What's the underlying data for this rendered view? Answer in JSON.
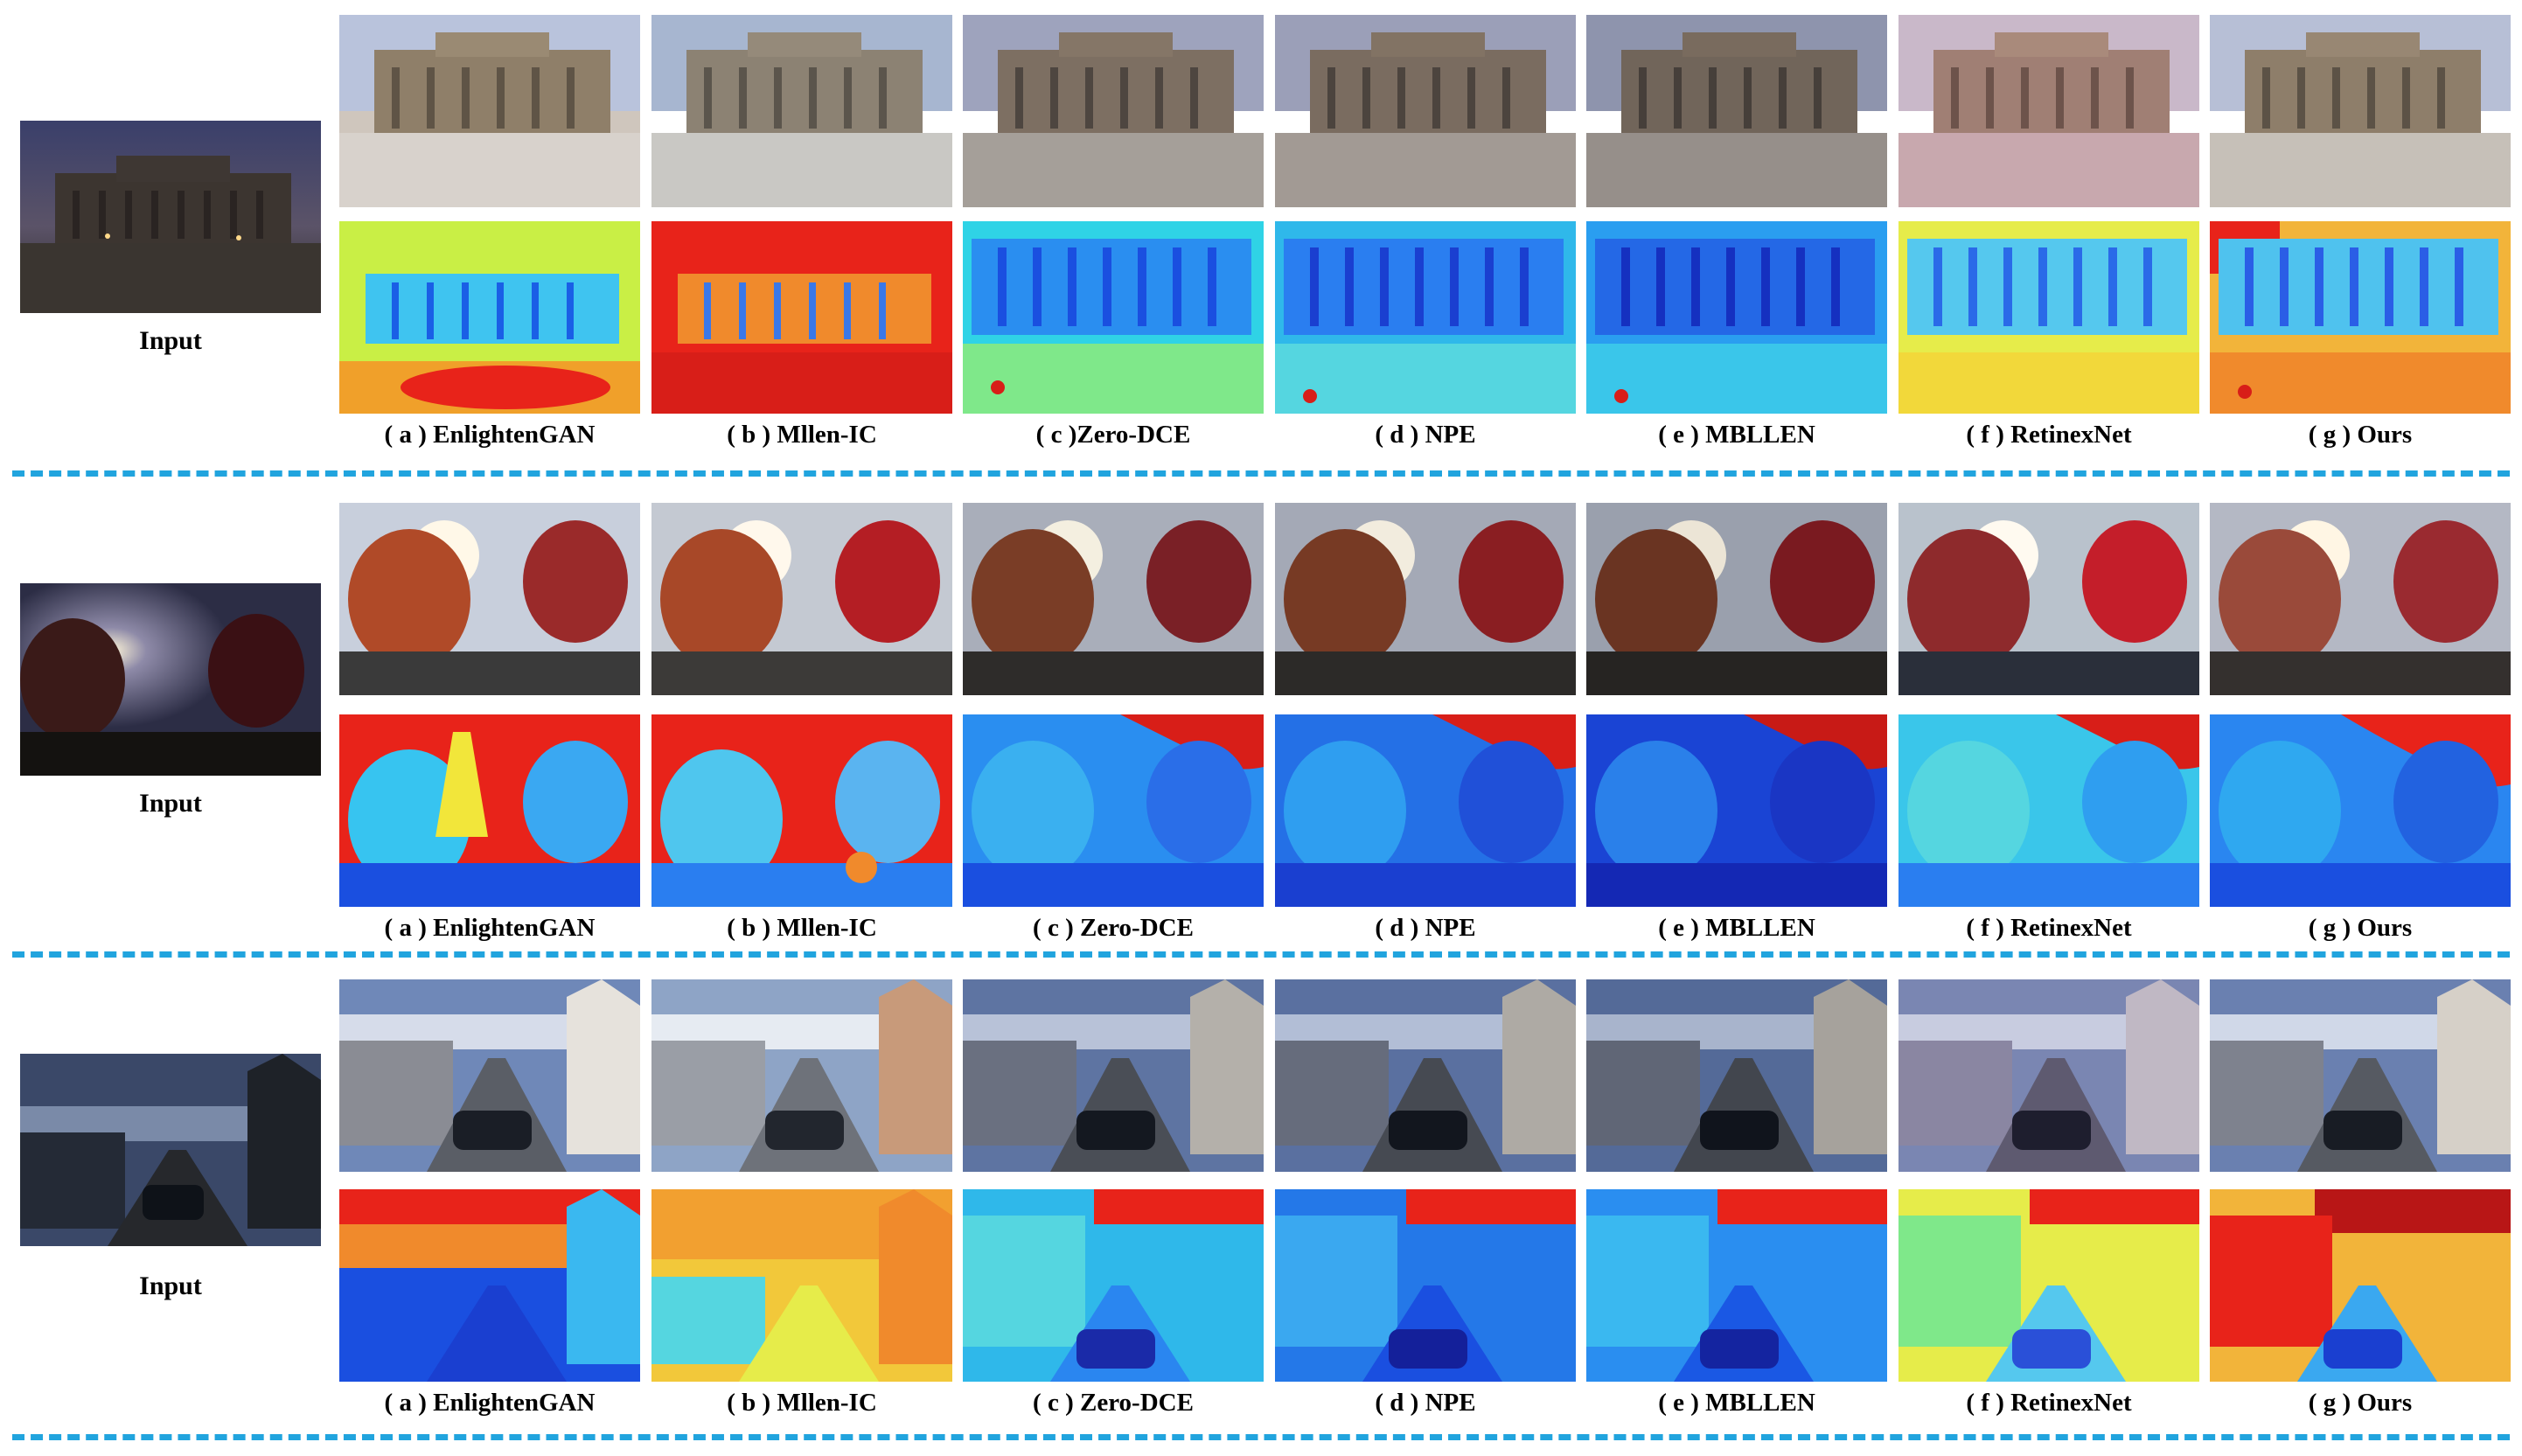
{
  "figure": {
    "input_label": "Input",
    "rows": [
      {
        "scene": "building",
        "captions": [
          "( a ) EnlightenGAN",
          "( b ) Mllen-IC",
          "( c )Zero-DCE",
          "( d ) NPE",
          "( e ) MBLLEN",
          "( f ) RetinexNet",
          "( g ) Ours"
        ]
      },
      {
        "scene": "balloons",
        "captions": [
          "( a ) EnlightenGAN",
          "( b ) Mllen-IC",
          "( c ) Zero-DCE",
          "( d ) NPE",
          "( e ) MBLLEN",
          "( f ) RetinexNet",
          "( g ) Ours"
        ]
      },
      {
        "scene": "street",
        "captions": [
          "( a ) EnlightenGAN",
          "( b ) Mllen-IC",
          "( c ) Zero-DCE",
          "( d ) NPE",
          "( e ) MBLLEN",
          "( f ) RetinexNet",
          "( g ) Ours"
        ]
      }
    ]
  },
  "colors": {
    "divider": "#21a4de",
    "heat_red": "#e8231a",
    "heat_yellow": "#f2e63a",
    "heat_cyan": "#2fd3e6",
    "heat_blue": "#1a4fe0"
  }
}
